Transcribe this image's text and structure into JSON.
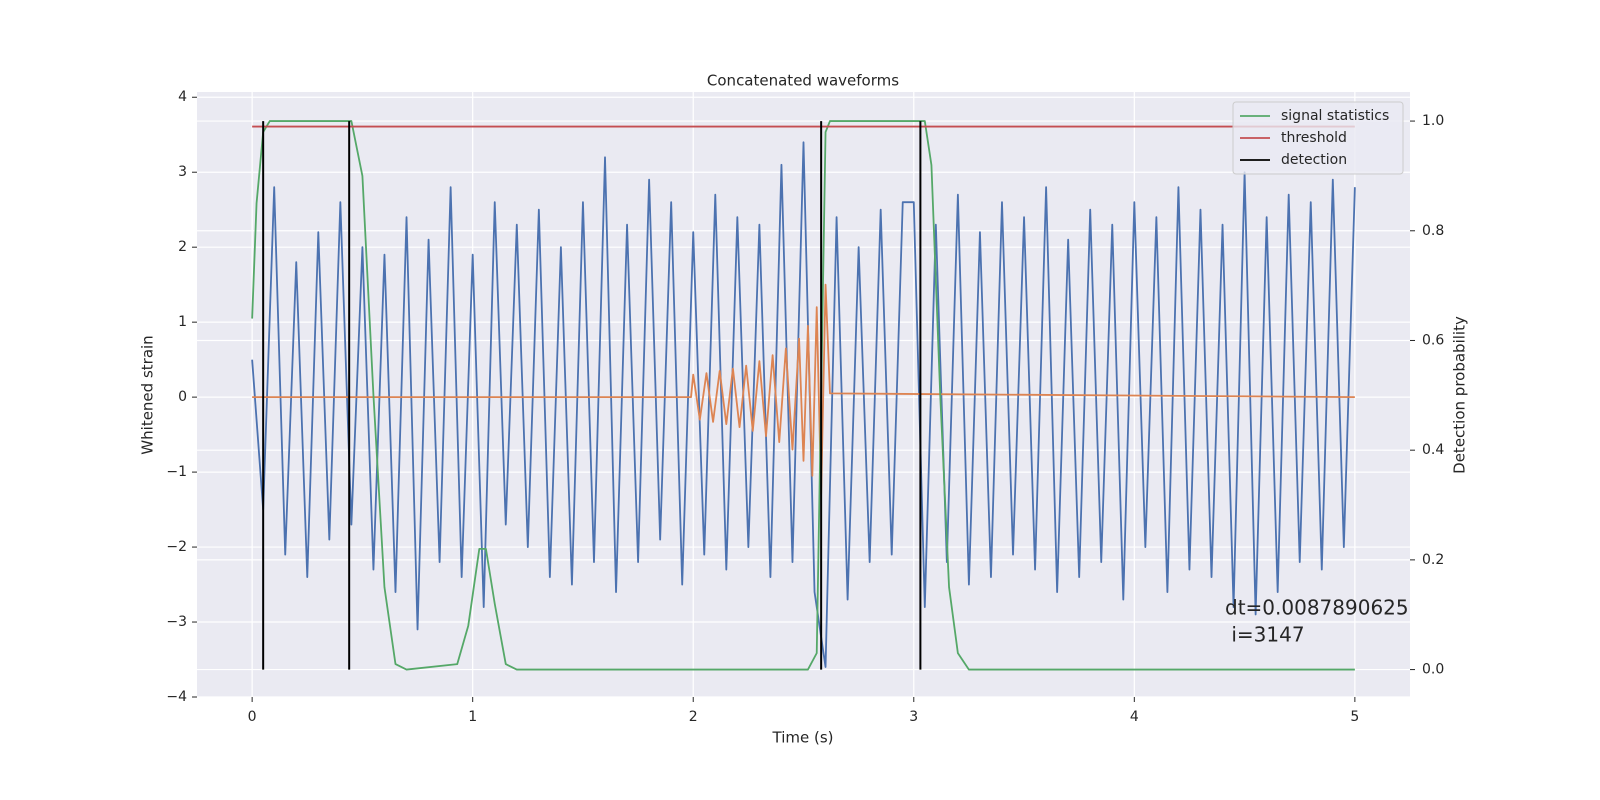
{
  "chart_data": {
    "type": "line",
    "title": "Concatenated waveforms",
    "xlabel": "Time (s)",
    "ylabel": "Whitened strain",
    "y2label": "Detection probability",
    "xlim": [
      -0.25,
      5.25
    ],
    "xticks": [
      0,
      1,
      2,
      3,
      4,
      5
    ],
    "ylim": [
      -4,
      4.07
    ],
    "yticks": [
      {
        "value": -4,
        "label": "−4"
      },
      {
        "value": -3,
        "label": "−3"
      },
      {
        "value": -2,
        "label": "−2"
      },
      {
        "value": -1,
        "label": "−1"
      },
      0,
      1,
      2,
      3,
      4
    ],
    "y2lim": [
      -0.05,
      1.053
    ],
    "y2ticks": [
      {
        "value": 0,
        "label": "0.0"
      },
      0.2,
      0.4,
      0.6,
      0.8,
      {
        "value": 1,
        "label": "1.0"
      }
    ],
    "grid": true,
    "legend": "upper right",
    "series": [
      {
        "color": "#4c72b0",
        "x": [
          0,
          0.05,
          0.1,
          0.15,
          0.2,
          0.25,
          0.3,
          0.35,
          0.4,
          0.45,
          0.5,
          0.55,
          0.6,
          0.65,
          0.7,
          0.75,
          0.8,
          0.85,
          0.9,
          0.95,
          1,
          1.05,
          1.1,
          1.15,
          1.2,
          1.25,
          1.3,
          1.35,
          1.4,
          1.45,
          1.5,
          1.55,
          1.6,
          1.65,
          1.7,
          1.75,
          1.8,
          1.85,
          1.9,
          1.95,
          2,
          2.05,
          2.1,
          2.15,
          2.2,
          2.25,
          2.3,
          2.35,
          2.4,
          2.45,
          2.5,
          2.55,
          2.6,
          2.65,
          2.7,
          2.75,
          2.8,
          2.85,
          2.9,
          2.95,
          3,
          3.05,
          3.1,
          3.15,
          3.2,
          3.25,
          3.3,
          3.35,
          3.4,
          3.45,
          3.5,
          3.55,
          3.6,
          3.65,
          3.7,
          3.75,
          3.8,
          3.85,
          3.9,
          3.95,
          4,
          4.05,
          4.1,
          4.15,
          4.2,
          4.25,
          4.3,
          4.35,
          4.4,
          4.45,
          4.5,
          4.55,
          4.6,
          4.65,
          4.7,
          4.75,
          4.8,
          4.85,
          4.9,
          4.95,
          5
        ],
        "values": [
          0.5,
          -1.5,
          2.8,
          -2.1,
          1.8,
          -2.4,
          2.2,
          -1.9,
          2.6,
          -1.7,
          2.0,
          -2.3,
          1.9,
          -2.6,
          2.4,
          -3.1,
          2.1,
          -2.2,
          2.8,
          -2.4,
          1.9,
          -2.8,
          2.6,
          -1.7,
          2.3,
          -2.0,
          2.5,
          -2.4,
          2.0,
          -2.5,
          2.6,
          -2.2,
          3.2,
          -2.6,
          2.3,
          -2.2,
          2.9,
          -1.9,
          2.6,
          -2.5,
          2.2,
          -2.1,
          2.7,
          -2.3,
          2.4,
          -2.0,
          2.3,
          -2.4,
          3.1,
          -2.2,
          3.4,
          -2.6,
          -3.6,
          2.4,
          -2.7,
          2.0,
          -2.2,
          2.5,
          -2.1,
          2.6,
          2.6,
          -2.8,
          2.3,
          -2.2,
          2.7,
          -2.5,
          2.2,
          -2.4,
          2.6,
          -2.1,
          2.4,
          -2.3,
          2.8,
          -2.6,
          2.1,
          -2.4,
          2.5,
          -2.2,
          2.3,
          -2.7,
          2.6,
          -2.0,
          2.4,
          -2.6,
          2.8,
          -2.3,
          2.5,
          -2.4,
          2.3,
          -2.8,
          3.0,
          -2.9,
          2.4,
          -2.6,
          2.7,
          -2.2,
          2.6,
          -2.3,
          2.9,
          -2.0,
          2.8
        ]
      },
      {
        "color": "#dd8452",
        "x": [
          0,
          1.99,
          2.0,
          2.03,
          2.06,
          2.09,
          2.12,
          2.15,
          2.18,
          2.21,
          2.24,
          2.27,
          2.3,
          2.33,
          2.36,
          2.39,
          2.42,
          2.45,
          2.48,
          2.5,
          2.52,
          2.54,
          2.56,
          2.58,
          2.6,
          2.62,
          5.0
        ],
        "values": [
          0,
          0,
          0.3,
          -0.3,
          0.32,
          -0.33,
          0.35,
          -0.36,
          0.38,
          -0.4,
          0.42,
          -0.45,
          0.48,
          -0.52,
          0.56,
          -0.6,
          0.65,
          -0.7,
          0.78,
          -0.85,
          0.95,
          -1.05,
          1.2,
          -1.3,
          1.5,
          0.05,
          0
        ]
      },
      {
        "name": "signal statistics",
        "color": "#55a868",
        "axis": "y2",
        "x": [
          0,
          0.02,
          0.05,
          0.08,
          0.45,
          0.5,
          0.55,
          0.6,
          0.65,
          0.7,
          0.93,
          0.98,
          1.03,
          1.06,
          1.1,
          1.15,
          1.2,
          2.52,
          2.56,
          2.58,
          2.6,
          2.62,
          3.05,
          3.08,
          3.12,
          3.16,
          3.2,
          3.25,
          5.0
        ],
        "values": [
          0.64,
          0.85,
          0.98,
          1.0,
          1.0,
          0.9,
          0.5,
          0.15,
          0.01,
          0.0,
          0.01,
          0.08,
          0.22,
          0.22,
          0.12,
          0.01,
          0.0,
          0.0,
          0.03,
          0.5,
          0.98,
          1.0,
          1.0,
          0.92,
          0.5,
          0.15,
          0.03,
          0.0,
          0.0
        ]
      },
      {
        "name": "threshold",
        "color": "#c44e52",
        "axis": "y2",
        "x": [
          0,
          5
        ],
        "values": [
          0.99,
          0.99
        ]
      },
      {
        "name": "detection",
        "color": "#000000",
        "axis": "y2",
        "type": "vline",
        "x": [
          0.05,
          0.44,
          2.58,
          3.03
        ],
        "values": [
          1,
          1,
          1,
          1
        ]
      }
    ],
    "annotation": [
      "dt=0.0087890625",
      " i=3147"
    ]
  }
}
